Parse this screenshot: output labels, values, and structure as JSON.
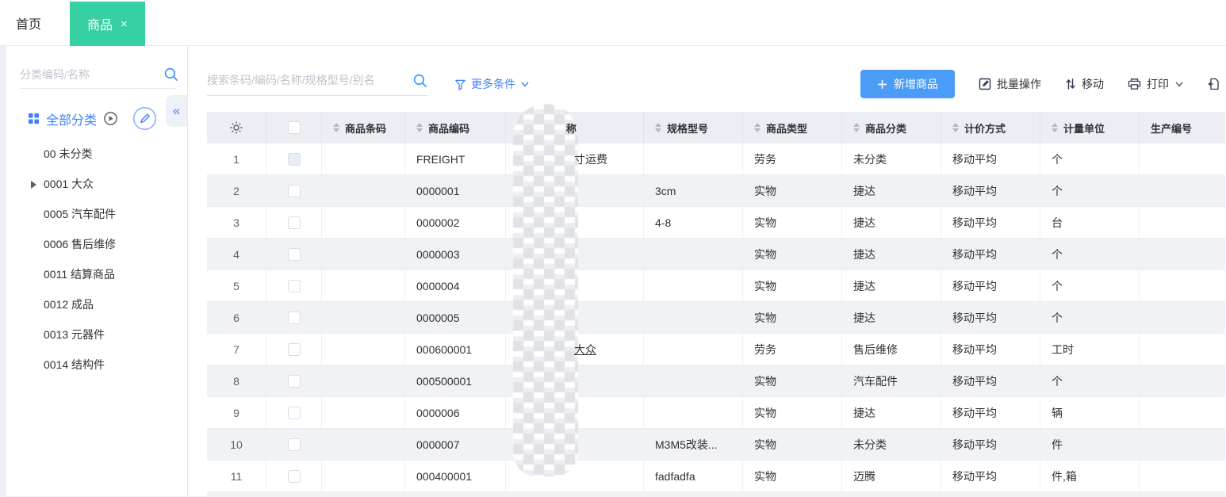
{
  "topbar": {
    "tabs": [
      {
        "label": "首页",
        "active": false
      },
      {
        "label": "商品",
        "active": true,
        "close_glyph": "×"
      }
    ]
  },
  "sidebar": {
    "search_placeholder": "分类编码/名称",
    "root_label": "全部分类",
    "collapse_glyph": "«",
    "items": [
      {
        "label": "00 未分类",
        "expandable": false
      },
      {
        "label": "0001 大众",
        "expandable": true
      },
      {
        "label": "0005 汽车配件",
        "expandable": false
      },
      {
        "label": "0006 售后维修",
        "expandable": false
      },
      {
        "label": "0011 结算商品",
        "expandable": false
      },
      {
        "label": "0012 成品",
        "expandable": false
      },
      {
        "label": "0013 元器件",
        "expandable": false
      },
      {
        "label": "0014 结构件",
        "expandable": false
      }
    ]
  },
  "toolbar": {
    "search_placeholder": "搜索条码/编码/名称/规格型号/别名",
    "more_filter_label": "更多条件",
    "add_label": "新增商品",
    "batch_label": "批量操作",
    "move_label": "移动",
    "print_label": "打印",
    "export_label": "导"
  },
  "table": {
    "headers": [
      {
        "label": "商品条码",
        "sortable": true
      },
      {
        "label": "商品编码",
        "sortable": true
      },
      {
        "label": "称",
        "sortable": false,
        "blurred": true
      },
      {
        "label": "规格型号",
        "sortable": true
      },
      {
        "label": "商品类型",
        "sortable": true
      },
      {
        "label": "商品分类",
        "sortable": true
      },
      {
        "label": "计价方式",
        "sortable": true
      },
      {
        "label": "计量单位",
        "sortable": true
      },
      {
        "label": "生产编号",
        "sortable": false
      }
    ],
    "rows": [
      {
        "num": "1",
        "barcode": "",
        "code": "FREIGHT",
        "name_visible": "寸运费",
        "name_link": false,
        "spec": "",
        "type": "劳务",
        "category": "未分类",
        "pricing": "移动平均",
        "unit": "个",
        "prod": "",
        "cb_tint": true
      },
      {
        "num": "2",
        "barcode": "",
        "code": "0000001",
        "name_visible": "",
        "name_link": false,
        "spec": "3cm",
        "type": "实物",
        "category": "捷达",
        "pricing": "移动平均",
        "unit": "个",
        "prod": "",
        "cb_tint": false
      },
      {
        "num": "3",
        "barcode": "",
        "code": "0000002",
        "name_visible": "",
        "name_link": false,
        "spec": "4-8",
        "type": "实物",
        "category": "捷达",
        "pricing": "移动平均",
        "unit": "台",
        "prod": "",
        "cb_tint": false
      },
      {
        "num": "4",
        "barcode": "",
        "code": "0000003",
        "name_visible": "",
        "name_link": false,
        "spec": "",
        "type": "实物",
        "category": "捷达",
        "pricing": "移动平均",
        "unit": "个",
        "prod": "",
        "cb_tint": false
      },
      {
        "num": "5",
        "barcode": "",
        "code": "0000004",
        "name_visible": "",
        "name_link": false,
        "spec": "",
        "type": "实物",
        "category": "捷达",
        "pricing": "移动平均",
        "unit": "个",
        "prod": "",
        "cb_tint": false
      },
      {
        "num": "6",
        "barcode": "",
        "code": "0000005",
        "name_visible": "",
        "name_link": false,
        "spec": "",
        "type": "实物",
        "category": "捷达",
        "pricing": "移动平均",
        "unit": "个",
        "prod": "",
        "cb_tint": false
      },
      {
        "num": "7",
        "barcode": "",
        "code": "000600001",
        "name_visible": "大众",
        "name_link": true,
        "spec": "",
        "type": "劳务",
        "category": "售后维修",
        "pricing": "移动平均",
        "unit": "工时",
        "prod": "",
        "cb_tint": false
      },
      {
        "num": "8",
        "barcode": "",
        "code": "000500001",
        "name_visible": "",
        "name_link": false,
        "spec": "",
        "type": "实物",
        "category": "汽车配件",
        "pricing": "移动平均",
        "unit": "个",
        "prod": "",
        "cb_tint": false
      },
      {
        "num": "9",
        "barcode": "",
        "code": "0000006",
        "name_visible": "",
        "name_link": false,
        "spec": "",
        "type": "实物",
        "category": "捷达",
        "pricing": "移动平均",
        "unit": "辆",
        "prod": "",
        "cb_tint": false
      },
      {
        "num": "10",
        "barcode": "",
        "code": "0000007",
        "name_visible": "",
        "name_link": false,
        "spec": "M3M5改装...",
        "type": "实物",
        "category": "未分类",
        "pricing": "移动平均",
        "unit": "件",
        "prod": "",
        "cb_tint": false
      },
      {
        "num": "11",
        "barcode": "",
        "code": "000400001",
        "name_visible": "",
        "name_link": false,
        "spec": "fadfadfa",
        "type": "实物",
        "category": "迈腾",
        "pricing": "移动平均",
        "unit": "件,箱",
        "prod": "",
        "cb_tint": false
      }
    ]
  },
  "colors": {
    "tab_green": "#36d0a2",
    "accent_blue": "#4080ff",
    "button_blue": "#4a9cf7",
    "header_bg": "#edeef3",
    "row_alt": "#f1f2f6"
  }
}
